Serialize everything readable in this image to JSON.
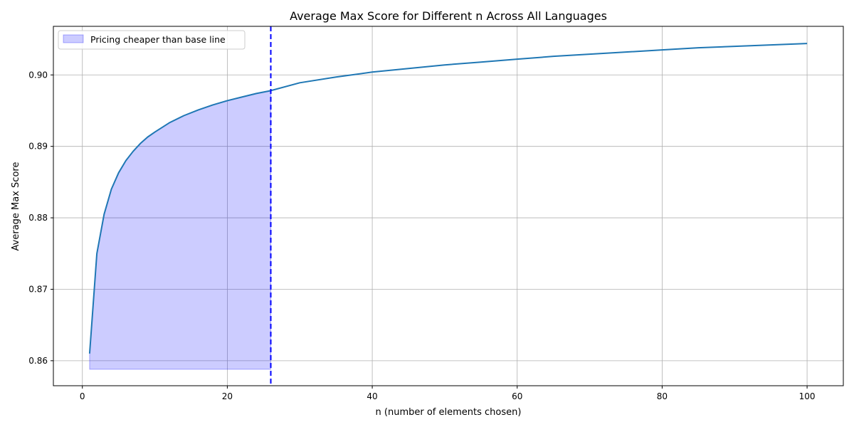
{
  "chart_data": {
    "type": "line",
    "title": "Average Max Score for Different n Across All Languages",
    "xlabel": "n (number of elements chosen)",
    "ylabel": "Average Max Score",
    "xlim": [
      -4,
      105
    ],
    "ylim": [
      0.8565,
      0.9068
    ],
    "xticks": [
      0,
      20,
      40,
      60,
      80,
      100
    ],
    "yticks": [
      0.86,
      0.87,
      0.88,
      0.89,
      0.9
    ],
    "ytick_labels": [
      "0.86",
      "0.87",
      "0.88",
      "0.89",
      "0.90"
    ],
    "grid": true,
    "legend_position": "top-left",
    "series": [
      {
        "color": "#1f77b4",
        "x": [
          1,
          2,
          3,
          4,
          5,
          6,
          7,
          8,
          9,
          10,
          12,
          14,
          16,
          18,
          20,
          22,
          24,
          26,
          30,
          35,
          40,
          45,
          50,
          55,
          60,
          65,
          70,
          75,
          80,
          85,
          90,
          95,
          100
        ],
        "y": [
          0.861,
          0.875,
          0.8805,
          0.884,
          0.8863,
          0.888,
          0.8893,
          0.8904,
          0.8913,
          0.892,
          0.8933,
          0.8943,
          0.8951,
          0.8958,
          0.8964,
          0.8969,
          0.8974,
          0.8978,
          0.8989,
          0.8997,
          0.9004,
          0.9009,
          0.9014,
          0.9018,
          0.9022,
          0.9026,
          0.9029,
          0.9032,
          0.9035,
          0.9038,
          0.904,
          0.9042,
          0.9044
        ]
      }
    ],
    "fill_region": {
      "label": "Pricing cheaper than base line",
      "color": "#0000ff",
      "x_start": 1,
      "x_end": 26,
      "y_base": 0.8588
    },
    "vline": {
      "x": 26,
      "color": "#0000ff",
      "style": "dashed"
    }
  }
}
